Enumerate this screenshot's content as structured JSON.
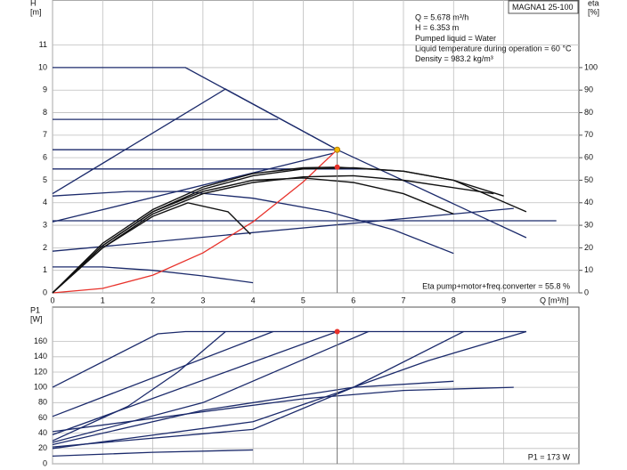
{
  "chart_data": [
    {
      "type": "line",
      "pump_model": "MAGNA1 25-100",
      "annotations": [
        "Q = 5.678 m³/h",
        "H = 6.353 m",
        "Pumped liquid = Water",
        "Liquid temperature during operation = 60 °C",
        "Density = 983.2 kg/m³"
      ],
      "footnote": "Eta pump+motor+freq.converter = 55.8 %",
      "ylabel": "H",
      "yunit": "[m]",
      "y2label": "eta",
      "y2unit": "[%]",
      "xlabel": "Q [m³/h]",
      "xlim": [
        0,
        10.5
      ],
      "xticks": [
        0,
        1,
        2,
        3,
        4,
        5,
        6,
        7,
        8,
        9
      ],
      "ylim": [
        0,
        13
      ],
      "yticks": [
        0,
        1,
        2,
        3,
        4,
        5,
        6,
        7,
        8,
        9,
        10,
        11
      ],
      "y2lim": [
        0,
        130
      ],
      "y2ticks": [
        0,
        10,
        20,
        30,
        40,
        50,
        60,
        70,
        80,
        90,
        100
      ],
      "grid": true,
      "series": [
        {
          "color": "#1b2a6b",
          "x": [
            0,
            2.65,
            5.678,
            9.45
          ],
          "values": [
            10,
            10,
            6.353,
            2.45
          ]
        },
        {
          "color": "#1b2a6b",
          "x": [
            0,
            3.45,
            5.678
          ],
          "values": [
            4.4,
            9.05,
            6.353
          ]
        },
        {
          "color": "#1b2a6b",
          "x": [
            0,
            4.5
          ],
          "values": [
            7.7,
            7.7
          ]
        },
        {
          "color": "#1b2a6b",
          "x": [
            0,
            5.678
          ],
          "values": [
            6.353,
            6.353
          ]
        },
        {
          "color": "#1b2a6b",
          "x": [
            0,
            6.3
          ],
          "values": [
            5.5,
            5.5
          ]
        },
        {
          "color": "#1b2a6b",
          "x": [
            0,
            10.05
          ],
          "values": [
            3.2,
            3.2
          ]
        },
        {
          "color": "#1b2a6b",
          "x": [
            0,
            5.6
          ],
          "values": [
            3.15,
            6.2
          ]
        },
        {
          "color": "#1b2a6b",
          "x": [
            0,
            9.2
          ],
          "values": [
            1.85,
            3.75
          ]
        },
        {
          "color": "#1b2a6b",
          "x": [
            0,
            1.5,
            2.6,
            4,
            5.5,
            6.8,
            8
          ],
          "values": [
            4.3,
            4.5,
            4.5,
            4.2,
            3.6,
            2.8,
            1.75
          ]
        },
        {
          "color": "#1b2a6b",
          "x": [
            0,
            1,
            2,
            3,
            4
          ],
          "values": [
            1.15,
            1.15,
            1.0,
            0.75,
            0.45
          ]
        },
        {
          "color": "#e8322b",
          "x": [
            0,
            1,
            2,
            3,
            4,
            5,
            5.678
          ],
          "values": [
            0,
            0.197,
            0.788,
            1.773,
            3.152,
            4.925,
            6.353
          ]
        },
        {
          "color": "#111111",
          "axis": "y2",
          "x": [
            0,
            1,
            2,
            3,
            4,
            5,
            5.678,
            7,
            8,
            9.45
          ],
          "values": [
            0,
            22,
            37,
            47,
            53,
            55.5,
            55.8,
            54,
            50,
            36
          ]
        },
        {
          "color": "#111111",
          "axis": "y2",
          "x": [
            0,
            1,
            2,
            2.7,
            3.5,
            3.95
          ],
          "values": [
            0,
            20,
            34,
            40,
            36,
            26
          ]
        },
        {
          "color": "#111111",
          "axis": "y2",
          "x": [
            0,
            1,
            2,
            3,
            4,
            5,
            6,
            7,
            8
          ],
          "values": [
            0,
            21,
            36,
            45,
            50,
            51,
            49,
            44,
            35
          ]
        },
        {
          "color": "#111111",
          "axis": "y2",
          "x": [
            0,
            1,
            2,
            3,
            4,
            5,
            6,
            7,
            8.8
          ],
          "values": [
            0,
            20,
            35,
            44,
            49,
            51.5,
            52,
            50,
            44
          ]
        },
        {
          "color": "#111111",
          "axis": "y2",
          "x": [
            0,
            1,
            2,
            3,
            4,
            5,
            6,
            7,
            8,
            9
          ],
          "values": [
            0,
            21,
            36,
            46,
            52,
            55,
            55.5,
            54,
            50,
            43
          ]
        }
      ],
      "markers": [
        {
          "x": 5.678,
          "y": 6.353,
          "color": "#f5b800"
        },
        {
          "x": 5.678,
          "y": 55.8,
          "axis": "y2",
          "color": "#e8322b"
        }
      ]
    },
    {
      "type": "line",
      "footnote": "P1 = 173 W",
      "ylabel": "P1",
      "yunit": "[W]",
      "xlim": [
        0,
        10.5
      ],
      "xticks": [
        0,
        1,
        2,
        3,
        4,
        5,
        6,
        7,
        8,
        9
      ],
      "ylim": [
        0,
        205
      ],
      "yticks": [
        0,
        20,
        40,
        60,
        80,
        100,
        120,
        140,
        160
      ],
      "grid": true,
      "series": [
        {
          "color": "#1b2a6b",
          "x": [
            0,
            2.1,
            2.65,
            9.45
          ],
          "values": [
            100,
            170,
            173,
            173
          ]
        },
        {
          "color": "#1b2a6b",
          "x": [
            0,
            1.5,
            2.5,
            3.45
          ],
          "values": [
            30,
            75,
            120,
            173
          ]
        },
        {
          "color": "#1b2a6b",
          "x": [
            0,
            4.4
          ],
          "values": [
            62,
            173
          ]
        },
        {
          "color": "#1b2a6b",
          "x": [
            0,
            5.678
          ],
          "values": [
            38,
            173
          ]
        },
        {
          "color": "#1b2a6b",
          "x": [
            0,
            3,
            6.3
          ],
          "values": [
            28,
            80,
            173
          ]
        },
        {
          "color": "#1b2a6b",
          "x": [
            0,
            4,
            6,
            8.2
          ],
          "values": [
            20,
            55,
            100,
            173
          ]
        },
        {
          "color": "#1b2a6b",
          "x": [
            0,
            4,
            6,
            7.5,
            9.45
          ],
          "values": [
            22,
            45,
            100,
            135,
            173
          ]
        },
        {
          "color": "#1b2a6b",
          "x": [
            0,
            3,
            6,
            8
          ],
          "values": [
            25,
            70,
            100,
            108
          ]
        },
        {
          "color": "#1b2a6b",
          "x": [
            0,
            3,
            5,
            7,
            9.2
          ],
          "values": [
            42,
            68,
            85,
            96,
            100
          ]
        },
        {
          "color": "#1b2a6b",
          "x": [
            0,
            2,
            4
          ],
          "values": [
            10,
            15,
            18
          ]
        }
      ],
      "markers": [
        {
          "x": 5.678,
          "y": 173,
          "color": "#e8322b"
        }
      ]
    }
  ]
}
